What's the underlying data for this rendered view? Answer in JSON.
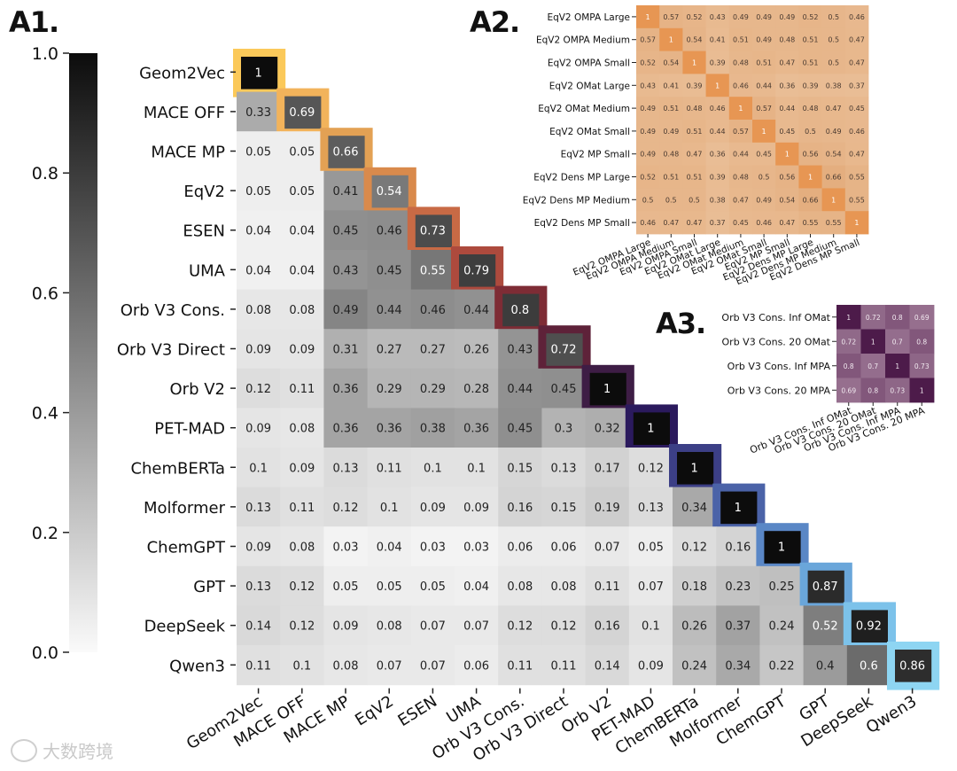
{
  "panels": {
    "a1": "A1.",
    "a2": "A2.",
    "a3": "A3."
  },
  "watermark": "大数跨境",
  "chart_data": [
    {
      "type": "heatmap",
      "id": "A1",
      "labels": [
        "Geom2Vec",
        "MACE OFF",
        "MACE MP",
        "EqV2",
        "ESEN",
        "UMA",
        "Orb V3 Cons.",
        "Orb V3 Direct",
        "Orb V2",
        "PET-MAD",
        "ChemBERTa",
        "Molformer",
        "ChemGPT",
        "GPT",
        "DeepSeek",
        "Qwen3"
      ],
      "values": [
        [
          1
        ],
        [
          0.33,
          0.69
        ],
        [
          0.05,
          0.05,
          0.66
        ],
        [
          0.05,
          0.05,
          0.41,
          0.54
        ],
        [
          0.04,
          0.04,
          0.45,
          0.46,
          0.73
        ],
        [
          0.04,
          0.04,
          0.43,
          0.45,
          0.55,
          0.79
        ],
        [
          0.08,
          0.08,
          0.49,
          0.44,
          0.46,
          0.44,
          0.8
        ],
        [
          0.09,
          0.09,
          0.31,
          0.27,
          0.27,
          0.26,
          0.43,
          0.72
        ],
        [
          0.12,
          0.11,
          0.36,
          0.29,
          0.29,
          0.28,
          0.44,
          0.45,
          1
        ],
        [
          0.09,
          0.08,
          0.36,
          0.36,
          0.38,
          0.36,
          0.45,
          0.3,
          0.32,
          1
        ],
        [
          0.1,
          0.09,
          0.13,
          0.11,
          0.1,
          0.1,
          0.15,
          0.13,
          0.17,
          0.12,
          1
        ],
        [
          0.13,
          0.11,
          0.12,
          0.1,
          0.09,
          0.09,
          0.16,
          0.15,
          0.19,
          0.13,
          0.34,
          1
        ],
        [
          0.09,
          0.08,
          0.03,
          0.04,
          0.03,
          0.03,
          0.06,
          0.06,
          0.07,
          0.05,
          0.12,
          0.16,
          1
        ],
        [
          0.13,
          0.12,
          0.05,
          0.05,
          0.05,
          0.04,
          0.08,
          0.08,
          0.11,
          0.07,
          0.18,
          0.23,
          0.25,
          0.87
        ],
        [
          0.14,
          0.12,
          0.09,
          0.08,
          0.07,
          0.07,
          0.12,
          0.12,
          0.16,
          0.1,
          0.26,
          0.37,
          0.24,
          0.52,
          0.92
        ],
        [
          0.11,
          0.1,
          0.08,
          0.07,
          0.07,
          0.06,
          0.11,
          0.11,
          0.14,
          0.09,
          0.24,
          0.34,
          0.22,
          0.4,
          0.6,
          0.86
        ]
      ],
      "diag_colors": [
        "#fbc95a",
        "#f2b35b",
        "#e3a154",
        "#d98a4c",
        "#c86a45",
        "#ad4a3d",
        "#7e2c35",
        "#5e2239",
        "#3e1d45",
        "#2b1a5d",
        "#3c3f86",
        "#4b63a8",
        "#5a87c6",
        "#6aa6da",
        "#7cc2ea",
        "#8ed5f2"
      ],
      "colorbar": {
        "ticks": [
          1.0,
          0.8,
          0.6,
          0.4,
          0.2,
          0.0
        ],
        "tick_labels": [
          "1.0",
          "0.8",
          "0.6",
          "0.4",
          "0.2",
          "0.0"
        ],
        "range": [
          0,
          1
        ]
      }
    },
    {
      "type": "heatmap",
      "id": "A2",
      "labels": [
        "EqV2 OMPA Large",
        "EqV2 OMPA Medium",
        "EqV2 OMPA Small",
        "EqV2 OMat Large",
        "EqV2 OMat Medium",
        "EqV2 OMat Small",
        "EqV2 MP Small",
        "EqV2 Dens MP Large",
        "EqV2 Dens MP Medium",
        "EqV2 Dens MP Small"
      ],
      "values": [
        [
          1,
          0.57,
          0.52,
          0.43,
          0.49,
          0.49,
          0.49,
          0.52,
          0.5,
          0.46
        ],
        [
          0.57,
          1,
          0.54,
          0.41,
          0.51,
          0.49,
          0.48,
          0.51,
          0.5,
          0.47
        ],
        [
          0.52,
          0.54,
          1,
          0.39,
          0.48,
          0.51,
          0.47,
          0.51,
          0.5,
          0.47
        ],
        [
          0.43,
          0.41,
          0.39,
          1,
          0.46,
          0.44,
          0.36,
          0.39,
          0.38,
          0.37
        ],
        [
          0.49,
          0.51,
          0.48,
          0.46,
          1,
          0.57,
          0.44,
          0.48,
          0.47,
          0.45
        ],
        [
          0.49,
          0.49,
          0.51,
          0.44,
          0.57,
          1,
          0.45,
          0.5,
          0.49,
          0.46
        ],
        [
          0.49,
          0.48,
          0.47,
          0.36,
          0.44,
          0.45,
          1,
          0.56,
          0.54,
          0.47
        ],
        [
          0.52,
          0.51,
          0.51,
          0.39,
          0.48,
          0.5,
          0.56,
          1,
          0.66,
          0.55
        ],
        [
          0.5,
          0.5,
          0.5,
          0.38,
          0.47,
          0.49,
          0.54,
          0.66,
          1,
          0.55
        ],
        [
          0.46,
          0.47,
          0.47,
          0.37,
          0.45,
          0.46,
          0.47,
          0.55,
          0.55,
          1
        ]
      ],
      "color_low": "#f6e3cf",
      "color_high": "#df9e66"
    },
    {
      "type": "heatmap",
      "id": "A3",
      "labels": [
        "Orb V3 Cons. Inf OMat",
        "Orb V3 Cons. 20 OMat",
        "Orb V3 Cons. Inf MPA",
        "Orb V3 Cons. 20 MPA"
      ],
      "values": [
        [
          1,
          0.72,
          0.8,
          0.69
        ],
        [
          0.72,
          1,
          0.7,
          0.8
        ],
        [
          0.8,
          0.7,
          1,
          0.73
        ],
        [
          0.69,
          0.8,
          0.73,
          1
        ]
      ],
      "color_low": "#c3a6bb",
      "color_high": "#5e2c58"
    }
  ]
}
